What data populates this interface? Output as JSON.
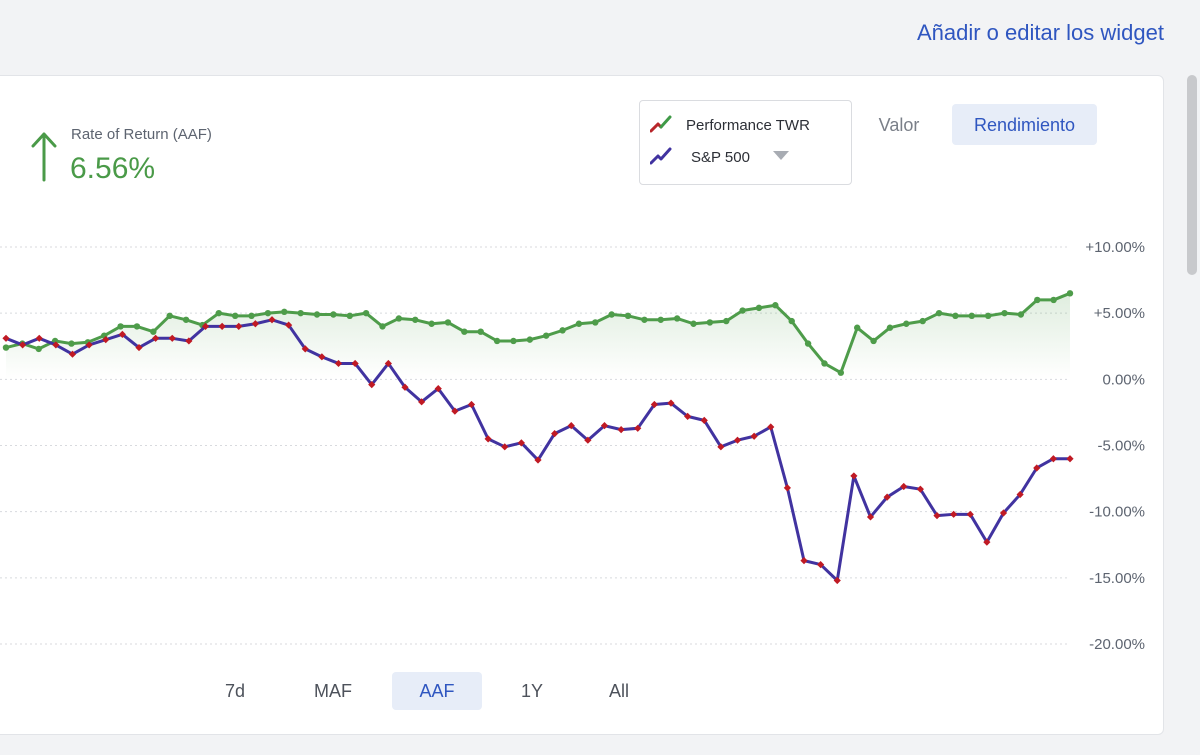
{
  "header": {
    "link_label": "Añadir o editar los widget"
  },
  "kpi": {
    "label": "Rate of Return (AAF)",
    "value": "6.56%",
    "color": "#4a9a48",
    "icon": "arrow-up-icon"
  },
  "legend": {
    "items": [
      {
        "label": "Performance TWR",
        "icon": "line-chart-icon",
        "colors": [
          "#b8262b",
          "#3f9a47"
        ]
      },
      {
        "label": "S&P 500",
        "icon": "line-chart-icon",
        "colors": [
          "#4133a0",
          "#4133a0"
        ]
      }
    ]
  },
  "view_toggle": {
    "valor_label": "Valor",
    "rendimiento_label": "Rendimiento",
    "selected": "Rendimiento"
  },
  "range_buttons": [
    {
      "label": "7d"
    },
    {
      "label": "MAF"
    },
    {
      "label": "AAF",
      "active": true
    },
    {
      "label": "1Y"
    },
    {
      "label": "All"
    }
  ],
  "chart_data": {
    "type": "line",
    "ylim": [
      -20,
      10
    ],
    "y_ticks": [
      10,
      5,
      0,
      -5,
      -10,
      -15,
      -20
    ],
    "y_tick_labels": [
      "+10.00%",
      "+5.00%",
      "0.00%",
      "-5.00%",
      "-10.00%",
      "-15.00%",
      "-20.00%"
    ],
    "grid": true,
    "series": [
      {
        "color": "#4e9c4a",
        "marker_color": "#4e9c4a",
        "fill": true,
        "values": [
          2.4,
          2.7,
          2.3,
          2.9,
          2.7,
          2.8,
          3.3,
          4.0,
          4.0,
          3.6,
          4.8,
          4.5,
          4.1,
          5.0,
          4.8,
          4.8,
          5.0,
          5.1,
          5.0,
          4.9,
          4.9,
          4.8,
          5.0,
          4.0,
          4.6,
          4.5,
          4.2,
          4.3,
          3.6,
          3.6,
          2.9,
          2.9,
          3.0,
          3.3,
          3.7,
          4.2,
          4.3,
          4.9,
          4.8,
          4.5,
          4.5,
          4.6,
          4.2,
          4.3,
          4.4,
          5.2,
          5.4,
          5.6,
          4.4,
          2.7,
          1.2,
          0.5,
          3.9,
          2.9,
          3.9,
          4.2,
          4.4,
          5.0,
          4.8,
          4.8,
          4.8,
          5.0,
          4.9,
          6.0,
          6.0,
          6.5
        ]
      },
      {
        "color": "#4133a0",
        "marker_color": "#c01a24",
        "fill": false,
        "values": [
          3.1,
          2.6,
          3.1,
          2.6,
          1.9,
          2.6,
          3.0,
          3.4,
          2.4,
          3.1,
          3.1,
          2.9,
          4.0,
          4.0,
          4.0,
          4.2,
          4.5,
          4.1,
          2.3,
          1.7,
          1.2,
          1.2,
          -0.4,
          1.2,
          -0.6,
          -1.7,
          -0.7,
          -2.4,
          -1.9,
          -4.5,
          -5.1,
          -4.8,
          -6.1,
          -4.1,
          -3.5,
          -4.6,
          -3.5,
          -3.8,
          -3.7,
          -1.9,
          -1.8,
          -2.8,
          -3.1,
          -5.1,
          -4.6,
          -4.3,
          -3.6,
          -8.2,
          -13.7,
          -14.0,
          -15.2,
          -7.3,
          -10.4,
          -8.9,
          -8.1,
          -8.3,
          -10.3,
          -10.2,
          -10.2,
          -12.3,
          -10.1,
          -8.7,
          -6.7,
          -6.0,
          -6.0
        ]
      }
    ]
  }
}
